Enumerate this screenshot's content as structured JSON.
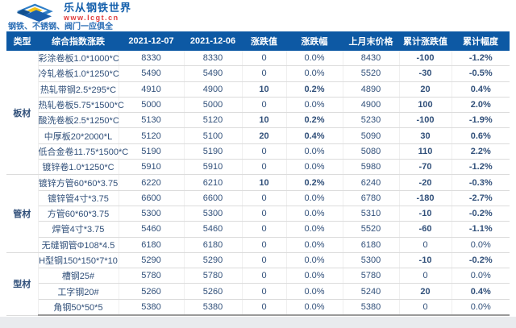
{
  "brand": {
    "name": "乐从钢铁世界",
    "url": "www.lcgt.cn",
    "tagline": "钢铁、不锈钢、阀门一应俱全"
  },
  "colors": {
    "header_blue": "#0d59a4",
    "product_cell_blue": "#1c6dc1",
    "type_cell_blue": "#3a76b2",
    "brand_blue": "#1560ac",
    "brand_red": "#e03a3a",
    "up_red": "#e60f0f",
    "down_green": "#00a05a"
  },
  "table": {
    "headers": [
      "类型",
      "综合指数涨跌",
      "2021-12-07",
      "2021-12-06",
      "涨跌值",
      "涨跌幅",
      "上月末价格",
      "累计涨跌值",
      "累计幅度"
    ],
    "groups": [
      {
        "type": "板材",
        "rows": [
          {
            "name": "彩涂卷板1.0*1000*C",
            "price_1207": "8330",
            "price_1206": "8330",
            "change": "0",
            "change_pct": "0.0%",
            "last_month": "8430",
            "cum_change": "-100",
            "cum_pct": "-1.2%",
            "change_trend": "flat",
            "cum_trend": "down"
          },
          {
            "name": "冷轧卷板1.0*1250*C",
            "price_1207": "5490",
            "price_1206": "5490",
            "change": "0",
            "change_pct": "0.0%",
            "last_month": "5520",
            "cum_change": "-30",
            "cum_pct": "-0.5%",
            "change_trend": "flat",
            "cum_trend": "down"
          },
          {
            "name": "热轧带钢2.5*295*C",
            "price_1207": "4910",
            "price_1206": "4900",
            "change": "10",
            "change_pct": "0.2%",
            "last_month": "4890",
            "cum_change": "20",
            "cum_pct": "0.4%",
            "change_trend": "up",
            "cum_trend": "up"
          },
          {
            "name": "热轧卷板5.75*1500*C",
            "price_1207": "5000",
            "price_1206": "5000",
            "change": "0",
            "change_pct": "0.0%",
            "last_month": "4900",
            "cum_change": "100",
            "cum_pct": "2.0%",
            "change_trend": "flat",
            "cum_trend": "up"
          },
          {
            "name": "酸洗卷板2.5*1250*C",
            "price_1207": "5130",
            "price_1206": "5120",
            "change": "10",
            "change_pct": "0.2%",
            "last_month": "5230",
            "cum_change": "-100",
            "cum_pct": "-1.9%",
            "change_trend": "up",
            "cum_trend": "down"
          },
          {
            "name": "中厚板20*2000*L",
            "price_1207": "5120",
            "price_1206": "5100",
            "change": "20",
            "change_pct": "0.4%",
            "last_month": "5090",
            "cum_change": "30",
            "cum_pct": "0.6%",
            "change_trend": "up",
            "cum_trend": "up"
          },
          {
            "name": "低合金卷11.75*1500*C",
            "price_1207": "5190",
            "price_1206": "5190",
            "change": "0",
            "change_pct": "0.0%",
            "last_month": "5080",
            "cum_change": "110",
            "cum_pct": "2.2%",
            "change_trend": "flat",
            "cum_trend": "up"
          },
          {
            "name": "镀锌卷1.0*1250*C",
            "price_1207": "5910",
            "price_1206": "5910",
            "change": "0",
            "change_pct": "0.0%",
            "last_month": "5980",
            "cum_change": "-70",
            "cum_pct": "-1.2%",
            "change_trend": "flat",
            "cum_trend": "down"
          }
        ]
      },
      {
        "type": "管材",
        "rows": [
          {
            "name": "镀锌方管60*60*3.75",
            "price_1207": "6220",
            "price_1206": "6210",
            "change": "10",
            "change_pct": "0.2%",
            "last_month": "6240",
            "cum_change": "-20",
            "cum_pct": "-0.3%",
            "change_trend": "up",
            "cum_trend": "down"
          },
          {
            "name": "镀锌管4寸*3.75",
            "price_1207": "6600",
            "price_1206": "6600",
            "change": "0",
            "change_pct": "0.0%",
            "last_month": "6780",
            "cum_change": "-180",
            "cum_pct": "-2.7%",
            "change_trend": "flat",
            "cum_trend": "down"
          },
          {
            "name": "方管60*60*3.75",
            "price_1207": "5300",
            "price_1206": "5300",
            "change": "0",
            "change_pct": "0.0%",
            "last_month": "5310",
            "cum_change": "-10",
            "cum_pct": "-0.2%",
            "change_trend": "flat",
            "cum_trend": "down"
          },
          {
            "name": "焊管4寸*3.75",
            "price_1207": "5460",
            "price_1206": "5460",
            "change": "0",
            "change_pct": "0.0%",
            "last_month": "5520",
            "cum_change": "-60",
            "cum_pct": "-1.1%",
            "change_trend": "flat",
            "cum_trend": "down"
          },
          {
            "name": "无缝钢管Φ108*4.5",
            "price_1207": "6180",
            "price_1206": "6180",
            "change": "0",
            "change_pct": "0.0%",
            "last_month": "6180",
            "cum_change": "0",
            "cum_pct": "0.0%",
            "change_trend": "flat",
            "cum_trend": "flat"
          }
        ]
      },
      {
        "type": "型材",
        "rows": [
          {
            "name": "H型钢150*150*7*10",
            "price_1207": "5290",
            "price_1206": "5290",
            "change": "0",
            "change_pct": "0.0%",
            "last_month": "5300",
            "cum_change": "-10",
            "cum_pct": "-0.2%",
            "change_trend": "flat",
            "cum_trend": "down"
          },
          {
            "name": "槽钢25#",
            "price_1207": "5780",
            "price_1206": "5780",
            "change": "0",
            "change_pct": "0.0%",
            "last_month": "5780",
            "cum_change": "0",
            "cum_pct": "0.0%",
            "change_trend": "flat",
            "cum_trend": "flat"
          },
          {
            "name": "工字钢20#",
            "price_1207": "5260",
            "price_1206": "5260",
            "change": "0",
            "change_pct": "0.0%",
            "last_month": "5240",
            "cum_change": "20",
            "cum_pct": "0.4%",
            "change_trend": "flat",
            "cum_trend": "up"
          },
          {
            "name": "角钢50*50*5",
            "price_1207": "5380",
            "price_1206": "5380",
            "change": "0",
            "change_pct": "0.0%",
            "last_month": "5380",
            "cum_change": "0",
            "cum_pct": "0.0%",
            "change_trend": "flat",
            "cum_trend": "flat"
          }
        ]
      }
    ]
  }
}
